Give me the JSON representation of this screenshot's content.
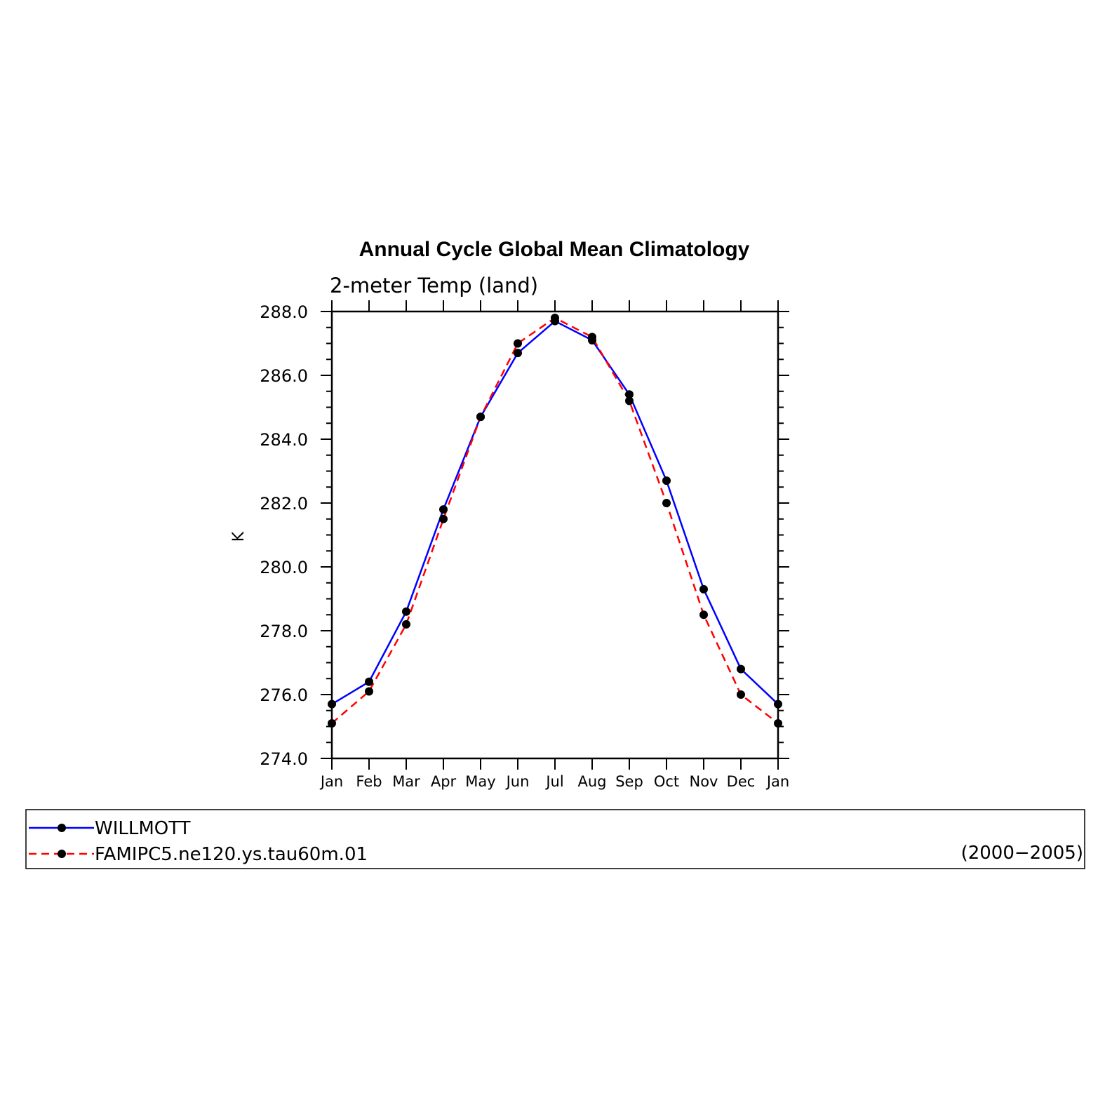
{
  "chart_data": {
    "type": "line",
    "title": "Annual Cycle Global Mean Climatology",
    "subtitle": "2-meter Temp (land)",
    "xlabel": "",
    "ylabel": "K",
    "categories": [
      "Jan",
      "Feb",
      "Mar",
      "Apr",
      "May",
      "Jun",
      "Jul",
      "Aug",
      "Sep",
      "Oct",
      "Nov",
      "Dec",
      "Jan"
    ],
    "ylim": [
      274.0,
      288.0
    ],
    "y_ticks": [
      "274.0",
      "276.0",
      "278.0",
      "280.0",
      "282.0",
      "284.0",
      "286.0",
      "288.0"
    ],
    "grid": false,
    "legend_position": "bottom",
    "series": [
      {
        "name": "WILLMOTT",
        "color": "#0000ff",
        "line_style": "solid",
        "values": [
          275.7,
          276.4,
          278.6,
          281.8,
          284.7,
          286.7,
          287.7,
          287.1,
          285.4,
          282.7,
          279.3,
          276.8,
          275.7
        ]
      },
      {
        "name": "FAMIPC5.ne120.ys.tau60m.01",
        "color": "#ff0000",
        "line_style": "dashed",
        "values": [
          275.1,
          276.1,
          278.2,
          281.5,
          284.7,
          287.0,
          287.8,
          287.2,
          285.2,
          282.0,
          278.5,
          276.0,
          275.1
        ]
      }
    ],
    "legend_note": "(2000−2005)"
  }
}
